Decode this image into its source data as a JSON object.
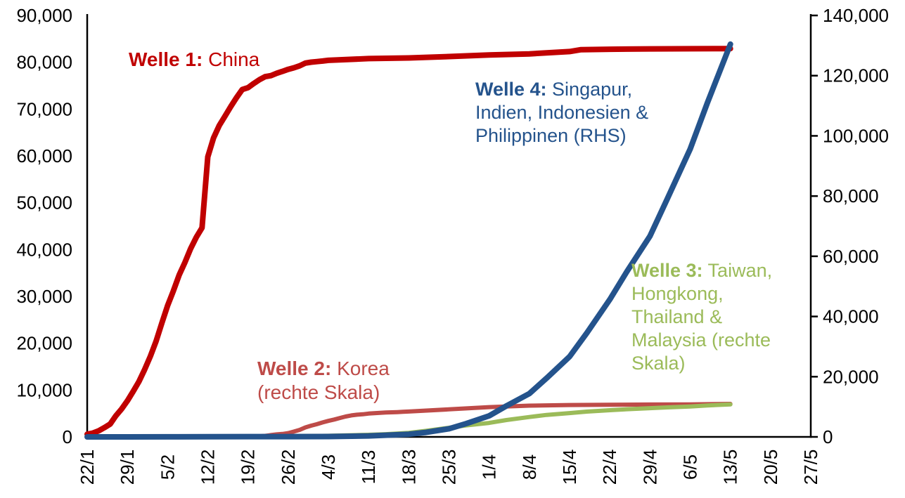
{
  "chart_data": {
    "type": "line",
    "title": "",
    "grid": false,
    "legend": "inline-annotations",
    "x_axis": {
      "tick_labels": [
        "22/1",
        "29/1",
        "5/2",
        "12/2",
        "19/2",
        "26/2",
        "4/3",
        "11/3",
        "18/3",
        "25/3",
        "1/4",
        "8/4",
        "15/4",
        "22/4",
        "29/4",
        "6/5",
        "13/5",
        "20/5",
        "27/5"
      ],
      "tick_days": [
        0,
        7,
        14,
        21,
        28,
        35,
        42,
        49,
        56,
        63,
        70,
        77,
        84,
        91,
        98,
        105,
        112,
        119,
        126
      ],
      "range_days": [
        0,
        126
      ],
      "label_rotation_deg": -90
    },
    "y_axis_left": {
      "min": 0,
      "max": 90000,
      "step": 10000,
      "tick_labels": [
        "0",
        "10,000",
        "20,000",
        "30,000",
        "40,000",
        "50,000",
        "60,000",
        "70,000",
        "80,000",
        "90,000"
      ]
    },
    "y_axis_right": {
      "min": 0,
      "max": 140000,
      "step": 20000,
      "tick_labels": [
        "0",
        "20,000",
        "40,000",
        "60,000",
        "80,000",
        "100,000",
        "120,000",
        "140,000"
      ]
    },
    "axis_color": "#000000",
    "series": [
      {
        "id": "welle1-china",
        "name": "Welle 1: China",
        "axis": "left",
        "color": "#C00000",
        "stroke_width": 8,
        "points": [
          [
            0,
            571
          ],
          [
            1,
            830
          ],
          [
            2,
            1287
          ],
          [
            3,
            1975
          ],
          [
            4,
            2744
          ],
          [
            5,
            4515
          ],
          [
            6,
            5974
          ],
          [
            7,
            7711
          ],
          [
            8,
            9692
          ],
          [
            9,
            11791
          ],
          [
            10,
            14380
          ],
          [
            11,
            17205
          ],
          [
            12,
            20438
          ],
          [
            13,
            24324
          ],
          [
            14,
            28018
          ],
          [
            15,
            31161
          ],
          [
            16,
            34546
          ],
          [
            17,
            37198
          ],
          [
            18,
            40171
          ],
          [
            19,
            42638
          ],
          [
            20,
            44653
          ],
          [
            21,
            59804
          ],
          [
            22,
            63851
          ],
          [
            23,
            66492
          ],
          [
            24,
            68500
          ],
          [
            25,
            70548
          ],
          [
            26,
            72436
          ],
          [
            27,
            74185
          ],
          [
            28,
            74576
          ],
          [
            29,
            75465
          ],
          [
            30,
            76288
          ],
          [
            31,
            76936
          ],
          [
            32,
            77150
          ],
          [
            33,
            77658
          ],
          [
            34,
            78064
          ],
          [
            35,
            78497
          ],
          [
            36,
            78824
          ],
          [
            37,
            79251
          ],
          [
            38,
            79824
          ],
          [
            39,
            80026
          ],
          [
            40,
            80151
          ],
          [
            41,
            80270
          ],
          [
            42,
            80409
          ],
          [
            49,
            80793
          ],
          [
            56,
            80928
          ],
          [
            63,
            81218
          ],
          [
            70,
            81554
          ],
          [
            77,
            81802
          ],
          [
            84,
            82295
          ],
          [
            86,
            82692
          ],
          [
            91,
            82788
          ],
          [
            98,
            82858
          ],
          [
            105,
            82883
          ],
          [
            112,
            82926
          ]
        ]
      },
      {
        "id": "welle2-korea",
        "name": "Welle 2: Korea (rechte Skala)",
        "axis": "right",
        "color": "#BE4B48",
        "stroke_width": 6,
        "points": [
          [
            0,
            1
          ],
          [
            7,
            4
          ],
          [
            14,
            16
          ],
          [
            21,
            28
          ],
          [
            28,
            51
          ],
          [
            29,
            104
          ],
          [
            30,
            204
          ],
          [
            31,
            346
          ],
          [
            32,
            602
          ],
          [
            33,
            833
          ],
          [
            34,
            977
          ],
          [
            35,
            1261
          ],
          [
            36,
            1766
          ],
          [
            37,
            2337
          ],
          [
            38,
            3150
          ],
          [
            39,
            3736
          ],
          [
            40,
            4212
          ],
          [
            41,
            4812
          ],
          [
            42,
            5328
          ],
          [
            43,
            5766
          ],
          [
            44,
            6284
          ],
          [
            45,
            6767
          ],
          [
            46,
            7134
          ],
          [
            47,
            7382
          ],
          [
            48,
            7513
          ],
          [
            49,
            7755
          ],
          [
            50,
            7869
          ],
          [
            51,
            7979
          ],
          [
            52,
            8086
          ],
          [
            53,
            8162
          ],
          [
            54,
            8236
          ],
          [
            55,
            8320
          ],
          [
            56,
            8413
          ],
          [
            63,
            9137
          ],
          [
            70,
            9887
          ],
          [
            77,
            10384
          ],
          [
            84,
            10591
          ],
          [
            91,
            10694
          ],
          [
            98,
            10761
          ],
          [
            105,
            10806
          ],
          [
            112,
            10962
          ]
        ]
      },
      {
        "id": "welle3-taiwan-hongkong-thailand-malaysia",
        "name": "Welle 3: Taiwan, Hongkong, Thailand & Malaysia (rechte Skala)",
        "axis": "right",
        "color": "#9BBB59",
        "stroke_width": 6,
        "points": [
          [
            0,
            5
          ],
          [
            7,
            35
          ],
          [
            14,
            65
          ],
          [
            21,
            95
          ],
          [
            28,
            135
          ],
          [
            35,
            205
          ],
          [
            42,
            375
          ],
          [
            49,
            700
          ],
          [
            52,
            900
          ],
          [
            56,
            1350
          ],
          [
            59,
            2000
          ],
          [
            63,
            3030
          ],
          [
            66,
            3800
          ],
          [
            70,
            4650
          ],
          [
            73,
            5600
          ],
          [
            77,
            6610
          ],
          [
            80,
            7300
          ],
          [
            84,
            7920
          ],
          [
            87,
            8400
          ],
          [
            91,
            8860
          ],
          [
            94,
            9200
          ],
          [
            98,
            9550
          ],
          [
            101,
            9800
          ],
          [
            105,
            10100
          ],
          [
            108,
            10450
          ],
          [
            112,
            10800
          ]
        ]
      },
      {
        "id": "welle4-singapur-indien-indonesien-philippinen",
        "name": "Welle 4: Singapur, Indien, Indonesien & Philippinen (RHS)",
        "axis": "right",
        "color": "#24538C",
        "stroke_width": 8,
        "points": [
          [
            0,
            1
          ],
          [
            7,
            10
          ],
          [
            14,
            35
          ],
          [
            21,
            60
          ],
          [
            28,
            90
          ],
          [
            35,
            97
          ],
          [
            42,
            125
          ],
          [
            49,
            323
          ],
          [
            56,
            893
          ],
          [
            59,
            1500
          ],
          [
            63,
            2714
          ],
          [
            66,
            4400
          ],
          [
            70,
            6990
          ],
          [
            73,
            10300
          ],
          [
            77,
            14370
          ],
          [
            80,
            19500
          ],
          [
            84,
            26660
          ],
          [
            87,
            34500
          ],
          [
            91,
            45640
          ],
          [
            94,
            55000
          ],
          [
            98,
            66690
          ],
          [
            101,
            79000
          ],
          [
            105,
            95630
          ],
          [
            108,
            111000
          ],
          [
            112,
            130460
          ]
        ]
      }
    ],
    "annotations": [
      {
        "id": "welle1",
        "bold": "Welle 1:",
        "rest": " China",
        "color": "#C00000"
      },
      {
        "id": "welle2",
        "bold": "Welle 2:",
        "rest": " Korea (rechte Skala)",
        "color": "#BE4B48"
      },
      {
        "id": "welle3",
        "bold": "Welle 3:",
        "rest": " Taiwan, Hongkong, Thailand & Malaysia (rechte Skala)",
        "color": "#9BBB59"
      },
      {
        "id": "welle4",
        "bold": "Welle 4:",
        "rest": " Singapur, Indien, Indonesien & Philippinen (RHS)",
        "color": "#24538C"
      }
    ]
  }
}
